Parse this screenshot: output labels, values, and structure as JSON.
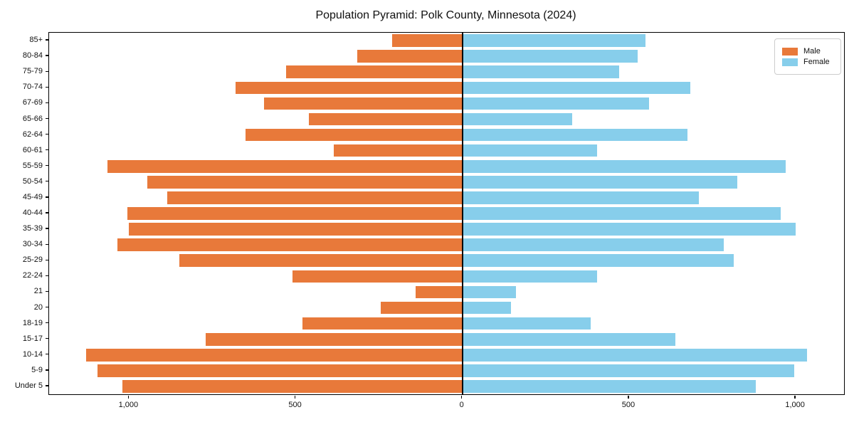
{
  "title": "Population Pyramid: Polk County, Minnesota (2024)",
  "legend": {
    "male": "Male",
    "female": "Female"
  },
  "colors": {
    "male": "#e8793a",
    "female": "#87ceeb",
    "axis": "#000000",
    "legend_border": "#cccccc"
  },
  "chart_data": {
    "type": "bar",
    "subtype": "population-pyramid",
    "title": "Population Pyramid: Polk County, Minnesota (2024)",
    "categories": [
      "85+",
      "80-84",
      "75-79",
      "70-74",
      "67-69",
      "65-66",
      "62-64",
      "60-61",
      "55-59",
      "50-54",
      "45-49",
      "40-44",
      "35-39",
      "30-34",
      "25-29",
      "22-24",
      "21",
      "20",
      "18-19",
      "15-17",
      "10-14",
      "5-9",
      "Under 5"
    ],
    "series": [
      {
        "name": "Male",
        "side": "left",
        "color": "#e8793a",
        "values": [
          210,
          315,
          530,
          680,
          595,
          460,
          650,
          385,
          1065,
          945,
          885,
          1005,
          1000,
          1035,
          850,
          510,
          140,
          245,
          480,
          770,
          1130,
          1095,
          1020
        ]
      },
      {
        "name": "Female",
        "side": "right",
        "color": "#87ceeb",
        "values": [
          550,
          525,
          470,
          685,
          560,
          330,
          675,
          405,
          970,
          825,
          710,
          955,
          1000,
          785,
          815,
          405,
          160,
          145,
          385,
          640,
          1035,
          995,
          880
        ]
      }
    ],
    "xlim": [
      -1240,
      1145
    ],
    "xticks": [
      {
        "value": -1000,
        "label": "1,000"
      },
      {
        "value": -500,
        "label": "500"
      },
      {
        "value": 0,
        "label": "0"
      },
      {
        "value": 500,
        "label": "500"
      },
      {
        "value": 1000,
        "label": "1,000"
      }
    ],
    "xlabel": "",
    "ylabel": "",
    "grid": false,
    "legend_position": "upper right",
    "zero_axis_line": true
  }
}
